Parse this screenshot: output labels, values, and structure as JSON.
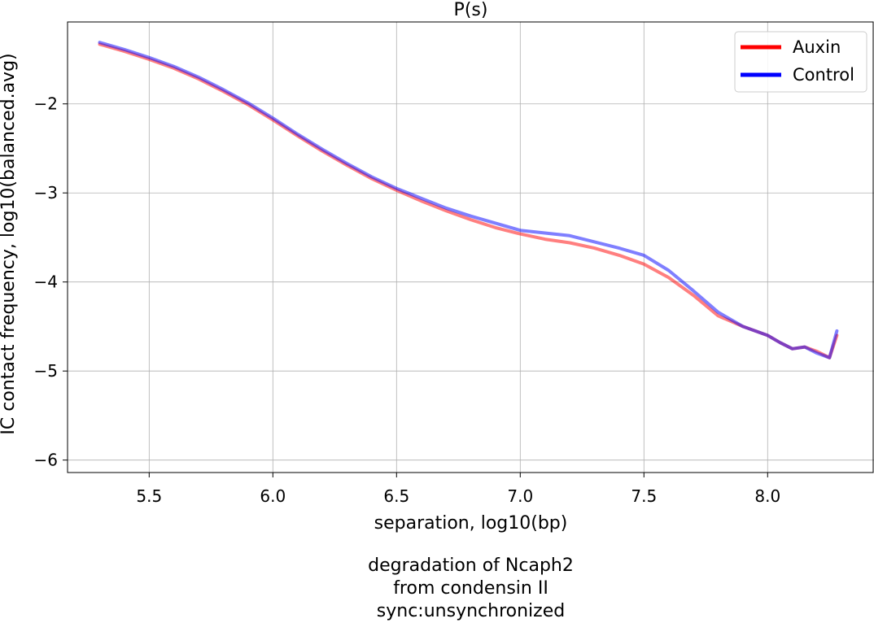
{
  "chart_data": {
    "type": "line",
    "title": "P(s)",
    "xlabel": "separation, log10(bp)",
    "ylabel": "IC contact frequency, log10(balanced.avg)",
    "xlim": [
      5.17,
      8.43
    ],
    "ylim": [
      -6.14,
      -1.08
    ],
    "xticks": [
      5.5,
      6.0,
      6.5,
      7.0,
      7.5,
      8.0
    ],
    "xtick_labels": [
      "5.5",
      "6.0",
      "6.5",
      "7.0",
      "7.5",
      "8.0"
    ],
    "yticks": [
      -2,
      -3,
      -4,
      -5,
      -6
    ],
    "ytick_labels": [
      "−2",
      "−3",
      "−4",
      "−5",
      "−6"
    ],
    "grid": true,
    "legend_position": "top-right",
    "series": [
      {
        "name": "Auxin",
        "color": "#ff0000",
        "x": [
          5.3,
          5.4,
          5.5,
          5.6,
          5.7,
          5.8,
          5.9,
          6.0,
          6.1,
          6.2,
          6.3,
          6.4,
          6.5,
          6.6,
          6.7,
          6.8,
          6.9,
          7.0,
          7.1,
          7.2,
          7.3,
          7.4,
          7.5,
          7.6,
          7.7,
          7.8,
          7.9,
          8.0,
          8.05,
          8.1,
          8.15,
          8.2,
          8.25,
          8.28
        ],
        "y": [
          -1.33,
          -1.41,
          -1.5,
          -1.6,
          -1.72,
          -1.86,
          -2.01,
          -2.18,
          -2.36,
          -2.53,
          -2.69,
          -2.84,
          -2.97,
          -3.09,
          -3.2,
          -3.3,
          -3.39,
          -3.46,
          -3.52,
          -3.56,
          -3.62,
          -3.7,
          -3.8,
          -3.95,
          -4.15,
          -4.38,
          -4.5,
          -4.6,
          -4.68,
          -4.75,
          -4.73,
          -4.78,
          -4.85,
          -4.6
        ]
      },
      {
        "name": "Control",
        "color": "#0000ff",
        "x": [
          5.3,
          5.4,
          5.5,
          5.6,
          5.7,
          5.8,
          5.9,
          6.0,
          6.1,
          6.2,
          6.3,
          6.4,
          6.5,
          6.6,
          6.7,
          6.8,
          6.9,
          7.0,
          7.1,
          7.2,
          7.3,
          7.4,
          7.5,
          7.6,
          7.7,
          7.8,
          7.9,
          8.0,
          8.05,
          8.1,
          8.15,
          8.2,
          8.25,
          8.28
        ],
        "y": [
          -1.31,
          -1.39,
          -1.48,
          -1.58,
          -1.7,
          -1.84,
          -1.99,
          -2.16,
          -2.34,
          -2.51,
          -2.67,
          -2.82,
          -2.95,
          -3.06,
          -3.17,
          -3.26,
          -3.34,
          -3.42,
          -3.45,
          -3.48,
          -3.55,
          -3.62,
          -3.7,
          -3.87,
          -4.1,
          -4.34,
          -4.5,
          -4.6,
          -4.68,
          -4.75,
          -4.73,
          -4.8,
          -4.85,
          -4.55
        ]
      }
    ]
  },
  "caption": {
    "line1": "degradation of Ncaph2",
    "line2": "from condensin II",
    "line3": "sync:unsynchronized"
  }
}
